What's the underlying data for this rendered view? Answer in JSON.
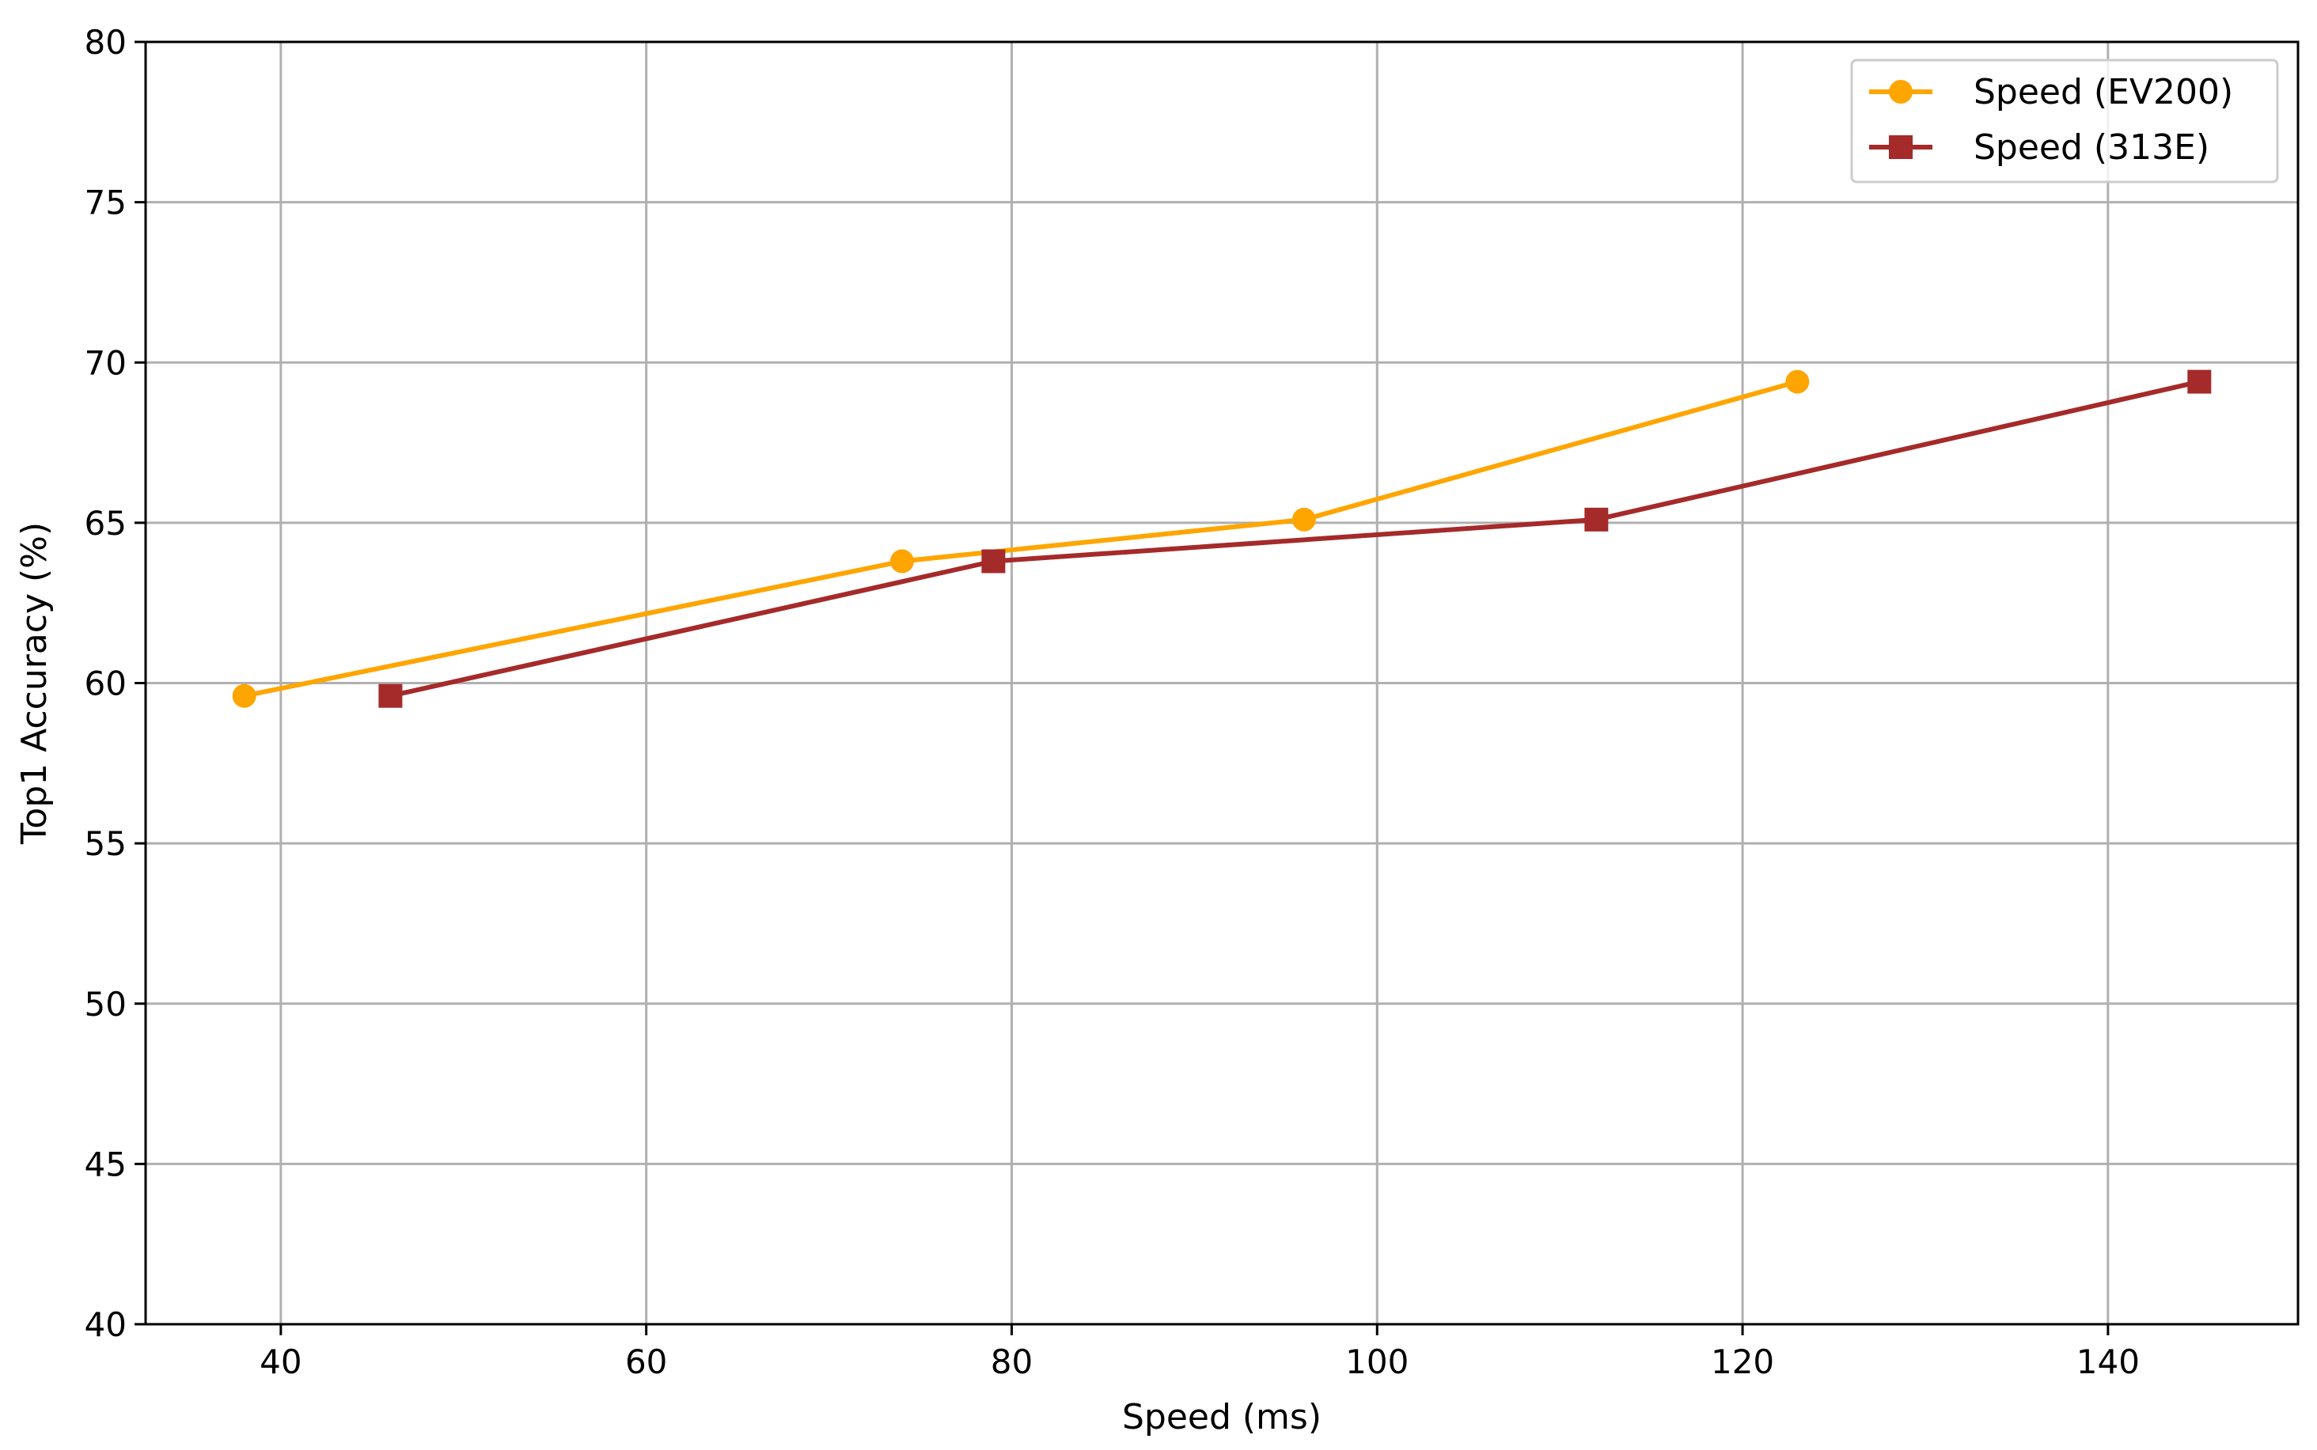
{
  "chart_data": {
    "type": "line",
    "title": "",
    "xlabel": "Speed (ms)",
    "ylabel": "Top1 Accuracy (%)",
    "xlim": [
      32.6,
      150.4
    ],
    "ylim": [
      40,
      80
    ],
    "xticks": [
      40,
      60,
      80,
      100,
      120,
      140
    ],
    "yticks": [
      40,
      45,
      50,
      55,
      60,
      65,
      70,
      75,
      80
    ],
    "grid": true,
    "legend_position": "top-right",
    "series": [
      {
        "name": "Speed (EV200)",
        "color": "#FFA500",
        "marker": "circle",
        "x": [
          38,
          74,
          96,
          123
        ],
        "y": [
          59.6,
          63.8,
          65.1,
          69.4
        ]
      },
      {
        "name": "Speed (313E)",
        "color": "#A52A2A",
        "marker": "square",
        "x": [
          46,
          79,
          112,
          145
        ],
        "y": [
          59.6,
          63.8,
          65.1,
          69.4
        ]
      }
    ]
  }
}
